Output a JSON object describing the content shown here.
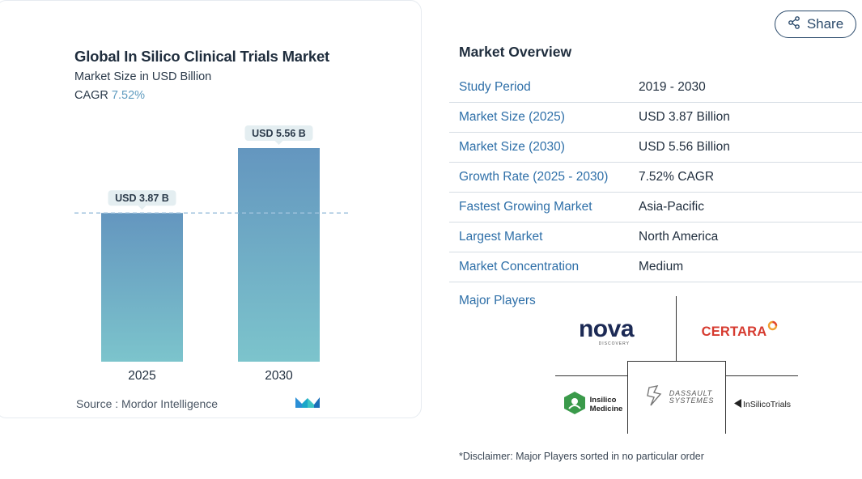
{
  "chart_data": {
    "type": "bar",
    "title": "Global In Silico Clinical Trials Market",
    "subtitle": "Market Size in USD Billion",
    "cagr_label": "CAGR",
    "cagr_value": "7.52%",
    "categories": [
      "2025",
      "2030"
    ],
    "values": [
      3.87,
      5.56
    ],
    "data_labels": [
      "USD 3.87 B",
      "USD 5.56 B"
    ],
    "ylim": [
      0,
      5.56
    ],
    "grid": false,
    "reference_line": "dashed line at 2025 value",
    "colors": {
      "bar_top": "#6496bf",
      "bar_bottom": "#7cc4cc",
      "label_bg": "#e4eef1",
      "dash": "#9ec2dc"
    },
    "source": "Source :  Mordor Intelligence"
  },
  "share": {
    "label": "Share",
    "icon": "share-icon"
  },
  "overview": {
    "title": "Market Overview",
    "rows": [
      {
        "key": "Study Period",
        "value": "2019 - 2030"
      },
      {
        "key": "Market Size (2025)",
        "value": "USD 3.87 Billion"
      },
      {
        "key": "Market Size (2030)",
        "value": "USD 5.56 Billion"
      },
      {
        "key": "Growth Rate (2025 - 2030)",
        "value": "7.52% CAGR"
      },
      {
        "key": "Fastest Growing Market",
        "value": "Asia-Pacific"
      },
      {
        "key": "Largest Market",
        "value": "North America"
      },
      {
        "key": "Market Concentration",
        "value": "Medium"
      }
    ],
    "players_label": "Major Players",
    "players": {
      "nova": "nova",
      "nova_sub": "DISCOVERY",
      "certara": "CERTARA",
      "insilico_1": "Insilico",
      "insilico_2": "Medicine",
      "dassault_1": "DASSAULT",
      "dassault_2": "SYSTEMES",
      "insilicotrials": "InSilicoTrials"
    },
    "disclaimer": "*Disclaimer: Major Players sorted in no particular order"
  }
}
